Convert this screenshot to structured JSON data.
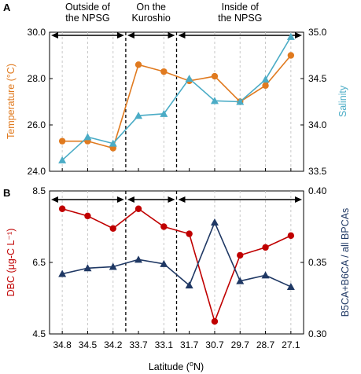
{
  "figure": {
    "xlabel": "Latitude (",
    "xlabel_sup": "o",
    "xlabel_tail": "N)",
    "x_ticks": [
      "34.8",
      "34.5",
      "34.2",
      "33.7",
      "33.1",
      "31.7",
      "30.7",
      "29.7",
      "28.7",
      "27.1"
    ],
    "regions": [
      "Outside of\nthe NPSG",
      "On the\nKuroshio",
      "Inside of\nthe NPSG"
    ]
  },
  "chart_data": [
    {
      "type": "line",
      "panel": "A",
      "categories": [
        "34.8",
        "34.5",
        "34.2",
        "33.7",
        "33.1",
        "31.7",
        "30.7",
        "29.7",
        "28.7",
        "27.1"
      ],
      "y_left": {
        "label": "Temperature (°C)",
        "lim": [
          24.0,
          30.0
        ],
        "ticks": [
          "24.0",
          "26.0",
          "28.0",
          "30.0"
        ]
      },
      "y_right": {
        "label": "Salinity",
        "lim": [
          33.5,
          35.0
        ],
        "ticks": [
          "33.5",
          "34.0",
          "34.5",
          "35.0"
        ]
      },
      "series": [
        {
          "axis": "left",
          "color": "#E07A1F",
          "marker": "circle",
          "values": [
            25.3,
            25.3,
            25.0,
            28.6,
            28.3,
            27.9,
            28.1,
            27.0,
            27.7,
            29.0
          ]
        },
        {
          "axis": "right",
          "color": "#4BACC6",
          "marker": "triangle",
          "values": [
            33.62,
            33.87,
            33.8,
            34.1,
            34.12,
            34.5,
            34.26,
            34.25,
            34.49,
            34.95
          ]
        }
      ],
      "grid": "vertical dashed"
    },
    {
      "type": "line",
      "panel": "B",
      "categories": [
        "34.8",
        "34.5",
        "34.2",
        "33.7",
        "33.1",
        "31.7",
        "30.7",
        "29.7",
        "28.7",
        "27.1"
      ],
      "y_left": {
        "label": "DBC (μg-C L⁻¹)",
        "lim": [
          4.5,
          8.5
        ],
        "ticks": [
          "4.5",
          "6.5",
          "8.5"
        ]
      },
      "y_right": {
        "label": "B5CA+B6CA / all BPCAs",
        "lim": [
          0.3,
          0.4
        ],
        "ticks": [
          "0.30",
          "0.35",
          "0.40"
        ]
      },
      "series": [
        {
          "axis": "left",
          "color": "#C00000",
          "marker": "circle",
          "values": [
            8.0,
            7.8,
            7.45,
            8.0,
            7.5,
            7.3,
            4.85,
            6.7,
            6.92,
            7.25
          ]
        },
        {
          "axis": "right",
          "color": "#1F3864",
          "marker": "triangle",
          "values": [
            0.342,
            0.346,
            0.347,
            0.352,
            0.349,
            0.334,
            0.378,
            0.337,
            0.341,
            0.333
          ]
        }
      ],
      "grid": "vertical dashed"
    }
  ]
}
